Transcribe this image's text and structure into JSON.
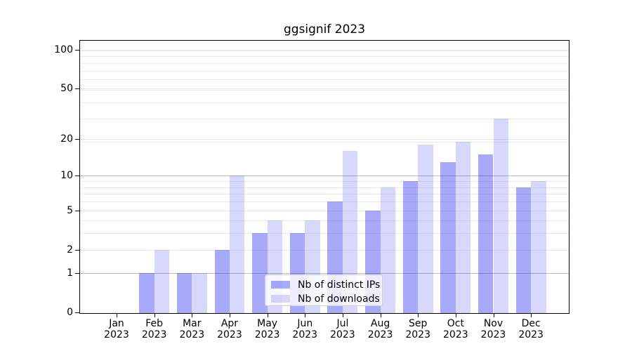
{
  "title": "ggsignif 2023",
  "chart_data": {
    "type": "bar",
    "title": "ggsignif 2023",
    "yscale": "log1p",
    "ylim": [
      0,
      118
    ],
    "yticks": [
      0,
      1,
      2,
      5,
      10,
      20,
      50,
      100
    ],
    "grid": {
      "on": true,
      "major_values": [
        1,
        10
      ],
      "minor_values": [
        2,
        3,
        4,
        5,
        6,
        7,
        8,
        9,
        19,
        20,
        29,
        39,
        49,
        50,
        59,
        69,
        79,
        89,
        99,
        100
      ]
    },
    "x_categories": [
      {
        "month": "Jan",
        "year": "2023"
      },
      {
        "month": "Feb",
        "year": "2023"
      },
      {
        "month": "Mar",
        "year": "2023"
      },
      {
        "month": "Apr",
        "year": "2023"
      },
      {
        "month": "May",
        "year": "2023"
      },
      {
        "month": "Jun",
        "year": "2023"
      },
      {
        "month": "Jul",
        "year": "2023"
      },
      {
        "month": "Aug",
        "year": "2023"
      },
      {
        "month": "Sep",
        "year": "2023"
      },
      {
        "month": "Oct",
        "year": "2023"
      },
      {
        "month": "Nov",
        "year": "2023"
      },
      {
        "month": "Dec",
        "year": "2023"
      }
    ],
    "series": [
      {
        "name": "Nb of distinct IPs",
        "color": "rgba(10,10,240,0.35)",
        "values": [
          0,
          1,
          1,
          2,
          3,
          3,
          6,
          5,
          9,
          13,
          15,
          8
        ]
      },
      {
        "name": "Nb of downloads",
        "color": "rgba(10,10,240,0.16)",
        "values": [
          0,
          2,
          1,
          10,
          4,
          4,
          16,
          8,
          18,
          19,
          29,
          9
        ]
      }
    ],
    "legend_position": "lower center"
  },
  "colors": {
    "background": "#ffffff",
    "spine": "#000000",
    "grid_minor": "#ebebeb",
    "grid_major": "#bdbdbd",
    "legend_border": "#d0d0d0",
    "legend_background": "rgba(255,255,255,0.8)",
    "text": "#000000"
  }
}
